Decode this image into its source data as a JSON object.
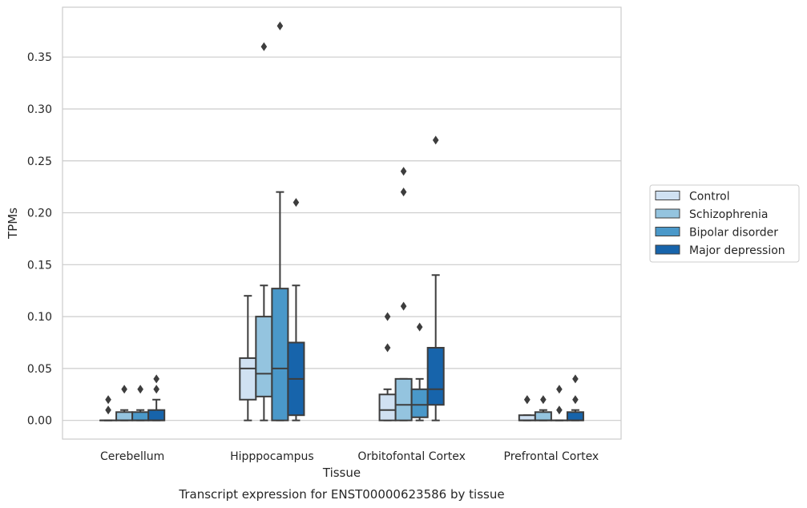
{
  "caption": "Transcript expression for ENST00000623586 by tissue",
  "chart_data": {
    "type": "box",
    "xlabel": "Tissue",
    "ylabel": "TPMs",
    "ylim": [
      -0.018,
      0.398
    ],
    "yticks": [
      0.0,
      0.05,
      0.1,
      0.15,
      0.2,
      0.25,
      0.3,
      0.35
    ],
    "ytick_labels": [
      "0.00",
      "0.05",
      "0.10",
      "0.15",
      "0.20",
      "0.25",
      "0.30",
      "0.35"
    ],
    "grid": "horizontal",
    "legend_position": "right",
    "categories": [
      "Cerebellum",
      "Hipppocampus",
      "Orbitofontal Cortex",
      "Prefrontal Cortex"
    ],
    "series": [
      {
        "name": "Control",
        "color": "#d0e1f2",
        "boxes": [
          {
            "whislo": 0.0,
            "q1": 0.0,
            "med": 0.0,
            "q3": 0.0,
            "whishi": 0.0,
            "fliers": [
              0.01,
              0.02
            ]
          },
          {
            "whislo": 0.0,
            "q1": 0.02,
            "med": 0.05,
            "q3": 0.06,
            "whishi": 0.12,
            "fliers": []
          },
          {
            "whislo": 0.0,
            "q1": 0.0,
            "med": 0.01,
            "q3": 0.025,
            "whishi": 0.03,
            "fliers": [
              0.07,
              0.1
            ]
          },
          {
            "whislo": 0.0,
            "q1": 0.0,
            "med": 0.0,
            "q3": 0.005,
            "whishi": 0.005,
            "fliers": [
              0.02,
              0.02
            ]
          }
        ]
      },
      {
        "name": "Schizophrenia",
        "color": "#94c4df",
        "boxes": [
          {
            "whislo": 0.0,
            "q1": 0.0,
            "med": 0.0,
            "q3": 0.008,
            "whishi": 0.01,
            "fliers": [
              0.03
            ]
          },
          {
            "whislo": 0.0,
            "q1": 0.023,
            "med": 0.045,
            "q3": 0.1,
            "whishi": 0.13,
            "fliers": [
              0.36
            ]
          },
          {
            "whislo": 0.0,
            "q1": 0.0,
            "med": 0.015,
            "q3": 0.04,
            "whishi": 0.04,
            "fliers": [
              0.11,
              0.22,
              0.24
            ]
          },
          {
            "whislo": 0.0,
            "q1": 0.0,
            "med": 0.0,
            "q3": 0.008,
            "whishi": 0.01,
            "fliers": [
              0.02
            ]
          }
        ]
      },
      {
        "name": "Bipolar disorder",
        "color": "#4a98c9",
        "boxes": [
          {
            "whislo": 0.0,
            "q1": 0.0,
            "med": 0.0,
            "q3": 0.008,
            "whishi": 0.01,
            "fliers": [
              0.03
            ]
          },
          {
            "whislo": 0.0,
            "q1": 0.0,
            "med": 0.05,
            "q3": 0.127,
            "whishi": 0.22,
            "fliers": [
              0.38
            ]
          },
          {
            "whislo": 0.0,
            "q1": 0.003,
            "med": 0.015,
            "q3": 0.03,
            "whishi": 0.04,
            "fliers": [
              0.09
            ]
          },
          {
            "whislo": 0.0,
            "q1": 0.0,
            "med": 0.0,
            "q3": 0.0,
            "whishi": 0.0,
            "fliers": [
              0.01,
              0.03
            ]
          }
        ]
      },
      {
        "name": "Major depression",
        "color": "#1764ab",
        "boxes": [
          {
            "whislo": 0.0,
            "q1": 0.0,
            "med": 0.0,
            "q3": 0.01,
            "whishi": 0.02,
            "fliers": [
              0.03,
              0.04
            ]
          },
          {
            "whislo": 0.0,
            "q1": 0.005,
            "med": 0.04,
            "q3": 0.075,
            "whishi": 0.13,
            "fliers": [
              0.21
            ]
          },
          {
            "whislo": 0.0,
            "q1": 0.015,
            "med": 0.03,
            "q3": 0.07,
            "whishi": 0.14,
            "fliers": [
              0.27
            ]
          },
          {
            "whislo": 0.0,
            "q1": 0.0,
            "med": 0.0,
            "q3": 0.008,
            "whishi": 0.01,
            "fliers": [
              0.02,
              0.04
            ]
          }
        ]
      }
    ]
  }
}
